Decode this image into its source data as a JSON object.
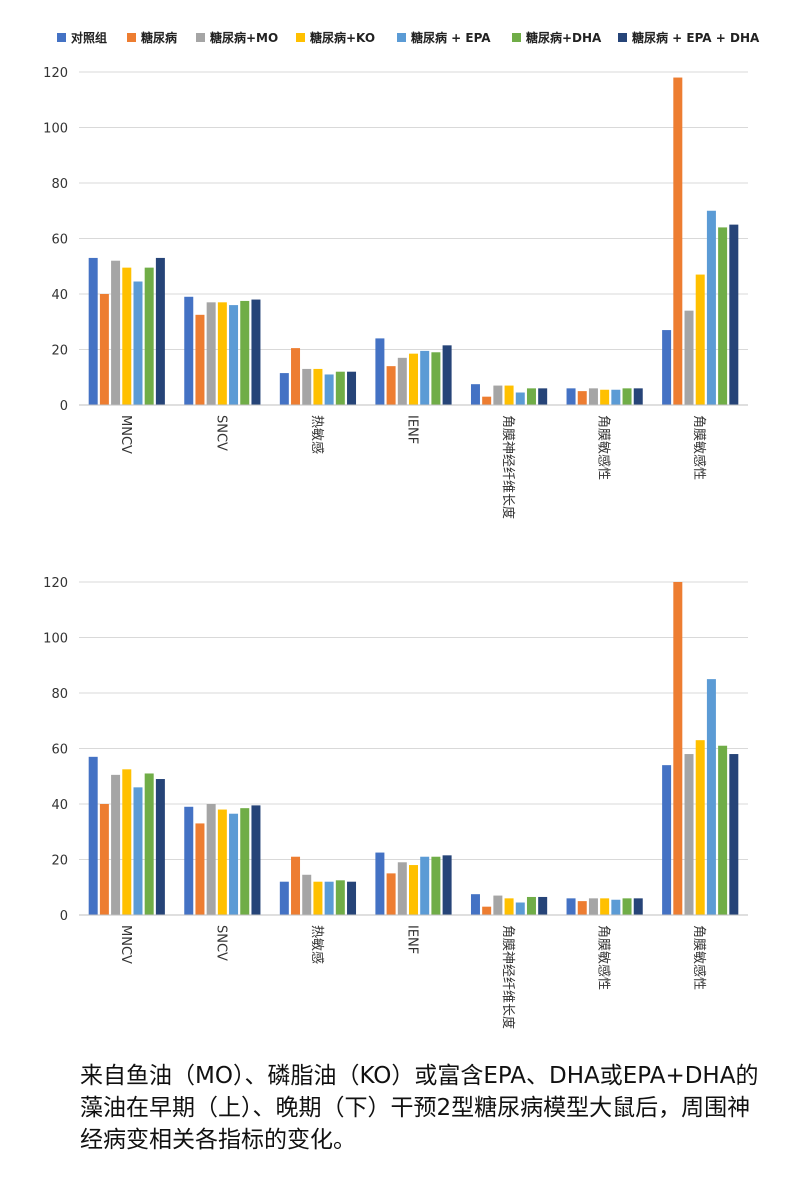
{
  "legend": [
    {
      "name": "对照组",
      "color": "#4472c4"
    },
    {
      "name": "糖尿病",
      "color": "#ed7d31"
    },
    {
      "name": "糖尿病+MO",
      "color": "#a5a5a5"
    },
    {
      "name": "糖尿病+KO",
      "color": "#ffc000"
    },
    {
      "name": "糖尿病 + EPA",
      "color": "#5b9bd5"
    },
    {
      "name": "糖尿病+DHA",
      "color": "#70ad47"
    },
    {
      "name": "糖尿病 + EPA + DHA",
      "color": "#264478"
    }
  ],
  "chart_data": [
    {
      "type": "bar",
      "categories": [
        "MNCV",
        "SNCV",
        "热敏感",
        "IENF",
        "角膜神经纤维长度",
        "角膜敏感性",
        "角膜敏感性"
      ],
      "yticks": [
        0,
        20,
        40,
        60,
        80,
        100,
        120
      ],
      "ylim": [
        0,
        120
      ],
      "grid": true,
      "legend_position": "top",
      "series": [
        {
          "name": "对照组",
          "values": [
            53,
            39,
            11.5,
            24,
            7.5,
            6,
            27
          ]
        },
        {
          "name": "糖尿病",
          "values": [
            40,
            32.5,
            20.5,
            14,
            3,
            5,
            118
          ]
        },
        {
          "name": "糖尿病+MO",
          "values": [
            52,
            37,
            13,
            17,
            7,
            6,
            34
          ]
        },
        {
          "name": "糖尿病+KO",
          "values": [
            49.5,
            37,
            13,
            18.5,
            7,
            5.5,
            47
          ]
        },
        {
          "name": "糖尿病 + EPA",
          "values": [
            44.5,
            36,
            11,
            19.5,
            4.5,
            5.5,
            70
          ]
        },
        {
          "name": "糖尿病+DHA",
          "values": [
            49.5,
            37.5,
            12,
            19,
            6,
            6,
            64
          ]
        },
        {
          "name": "糖尿病 + EPA + DHA",
          "values": [
            53,
            38,
            12,
            21.5,
            6,
            6,
            65
          ]
        }
      ]
    },
    {
      "type": "bar",
      "categories": [
        "MNCV",
        "SNCV",
        "热敏感",
        "IENF",
        "角膜神经纤维长度",
        "角膜敏感性",
        "角膜敏感性"
      ],
      "yticks": [
        0,
        20,
        40,
        60,
        80,
        100,
        120
      ],
      "ylim": [
        0,
        120
      ],
      "grid": true,
      "legend_position": "top",
      "series": [
        {
          "name": "对照组",
          "values": [
            57,
            39,
            12,
            22.5,
            7.5,
            6,
            54
          ]
        },
        {
          "name": "糖尿病",
          "values": [
            40,
            33,
            21,
            15,
            3,
            5,
            120
          ]
        },
        {
          "name": "糖尿病+MO",
          "values": [
            50.5,
            40,
            14.5,
            19,
            7,
            6,
            58
          ]
        },
        {
          "name": "糖尿病+KO",
          "values": [
            52.5,
            38,
            12,
            18,
            6,
            6,
            63
          ]
        },
        {
          "name": "糖尿病 + EPA",
          "values": [
            46,
            36.5,
            12,
            21,
            4.5,
            5.5,
            85
          ]
        },
        {
          "name": "糖尿病+DHA",
          "values": [
            51,
            38.5,
            12.5,
            21,
            6.5,
            6,
            61
          ]
        },
        {
          "name": "糖尿病 + EPA + DHA",
          "values": [
            49,
            39.5,
            12,
            21.5,
            6.5,
            6,
            58
          ]
        }
      ]
    }
  ],
  "caption": "来自鱼油（MO）、磷脂油（KO）或富含EPA、DHA或EPA+DHA的藻油在早期（上）、晚期（下）干预2型糖尿病模型大鼠后，周围神经病变相关各指标的变化。"
}
